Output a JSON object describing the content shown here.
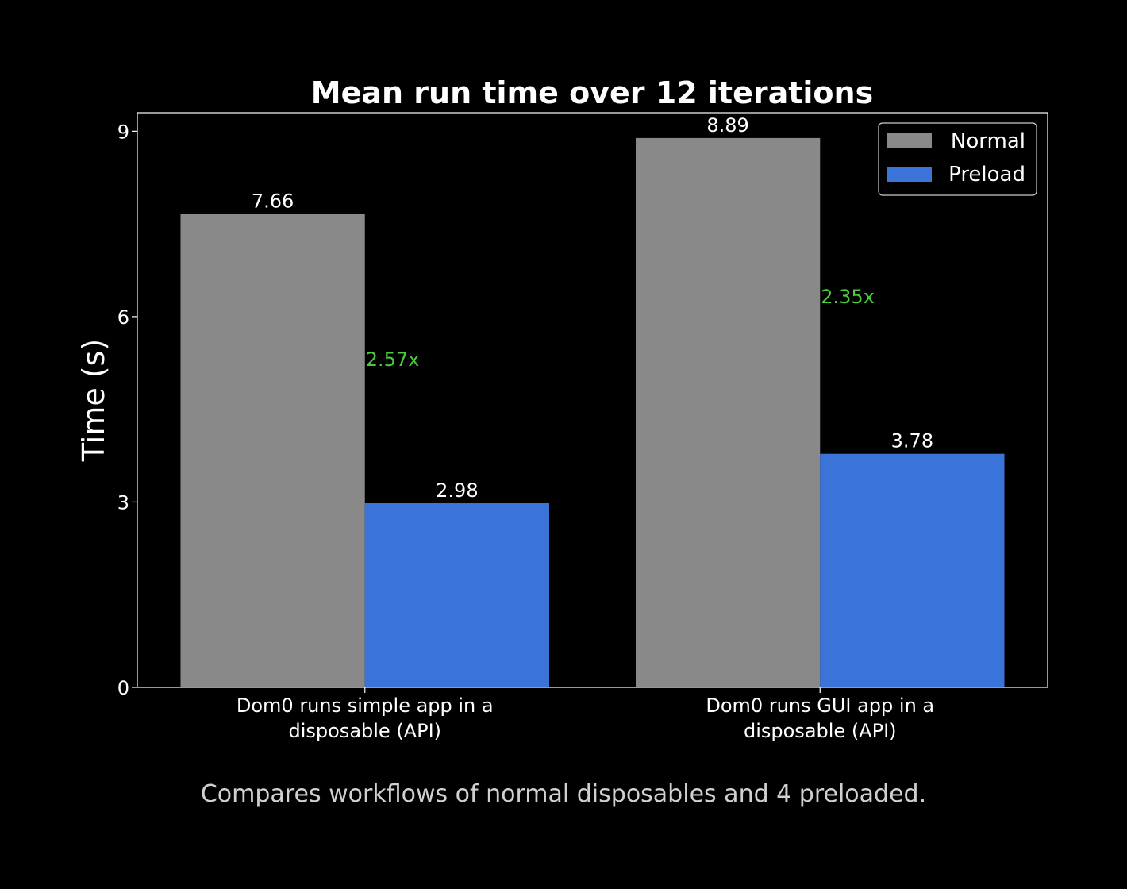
{
  "chart_data": {
    "type": "bar",
    "title": "Mean run time  over 12 iterations",
    "ylabel": "Time (s)",
    "xlabel": "",
    "ylim": [
      0,
      9.3
    ],
    "yticks": [
      0,
      3,
      6,
      9
    ],
    "grid": false,
    "legend_position": "top-right",
    "categories": [
      [
        "Dom0 runs simple app in a",
        "disposable (API)"
      ],
      [
        "Dom0 runs GUI app in a",
        "disposable (API)"
      ]
    ],
    "series": [
      {
        "name": "Normal",
        "color": "#898989",
        "values": [
          7.66,
          8.89
        ],
        "labels": [
          "7.66",
          "8.89"
        ]
      },
      {
        "name": "Preload",
        "color": "#3b74d8",
        "values": [
          2.98,
          3.78
        ],
        "labels": [
          "2.98",
          "3.78"
        ]
      }
    ],
    "annotations": {
      "speedups": [
        "2.57x",
        "2.35x"
      ],
      "color": "#4ccc3c"
    },
    "caption": "Compares workflows of normal disposables and 4 preloaded."
  },
  "colors": {
    "background": "#000000",
    "axes": "#ffffff",
    "caption": "#d0d0d0"
  }
}
